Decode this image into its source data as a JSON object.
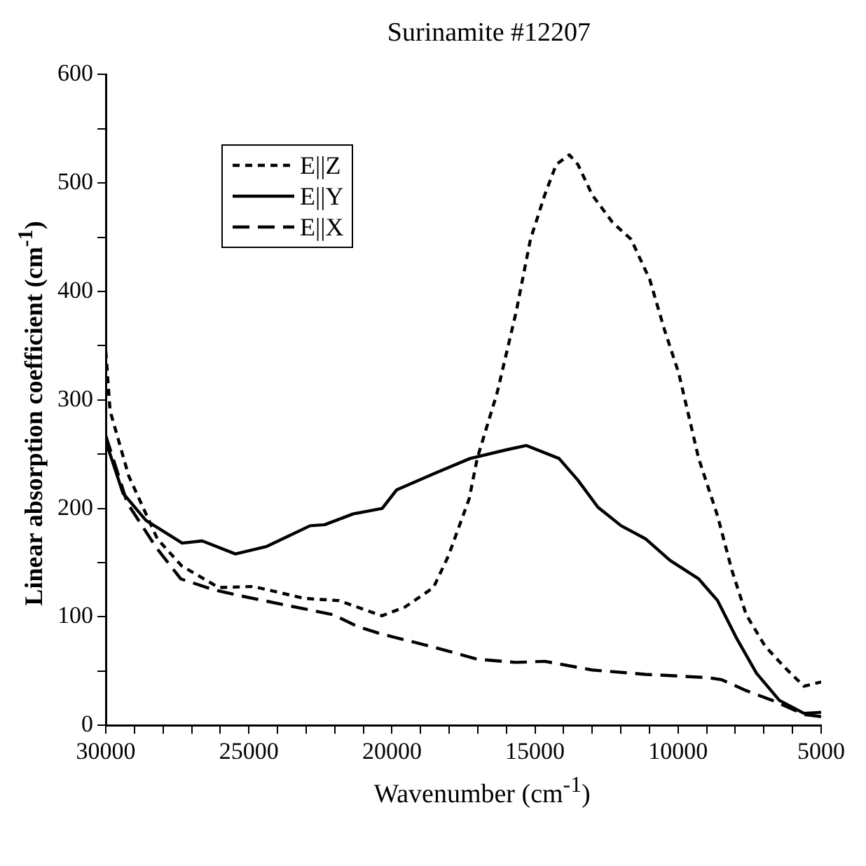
{
  "chart_data": {
    "type": "line",
    "title": "Surinamite #12207",
    "xlabel": "Wavenumber (cm$^{-1}$)",
    "ylabel": "Linear absorption coefficient (cm$^{-1}$)",
    "xlim": [
      30000,
      5000
    ],
    "ylim": [
      0,
      600
    ],
    "xticks": [
      30000,
      {
        "value": 29000,
        "label": null
      },
      {
        "value": 28000,
        "label": null
      },
      {
        "value": 27000,
        "label": null
      },
      {
        "value": 26000,
        "label": null
      },
      25000,
      {
        "value": 24000,
        "label": null
      },
      {
        "value": 23000,
        "label": null
      },
      {
        "value": 22000,
        "label": null
      },
      {
        "value": 21000,
        "label": null
      },
      20000,
      {
        "value": 19000,
        "label": null
      },
      {
        "value": 18000,
        "label": null
      },
      {
        "value": 17000,
        "label": null
      },
      {
        "value": 16000,
        "label": null
      },
      15000,
      {
        "value": 14000,
        "label": null
      },
      {
        "value": 13000,
        "label": null
      },
      {
        "value": 12000,
        "label": null
      },
      {
        "value": 11000,
        "label": null
      },
      10000,
      {
        "value": 9000,
        "label": null
      },
      {
        "value": 8000,
        "label": null
      },
      {
        "value": 7000,
        "label": null
      },
      {
        "value": 6000,
        "label": null
      },
      5000
    ],
    "yticks": [
      0,
      {
        "value": 50,
        "label": null
      },
      100,
      {
        "value": 150,
        "label": null
      },
      200,
      {
        "value": 250,
        "label": null
      },
      300,
      {
        "value": 350,
        "label": null
      },
      400,
      {
        "value": 450,
        "label": null
      },
      500,
      {
        "value": 550,
        "label": null
      },
      600
    ],
    "grid": false,
    "legend": "top left",
    "marker": "none",
    "series": [
      {
        "name": "E||Z",
        "color": "#000000",
        "line_style": "dotted",
        "x": [
          30000,
          29850,
          29200,
          28200,
          27350,
          26050,
          24850,
          23050,
          21850,
          20350,
          19550,
          18550,
          18030,
          17300,
          17020,
          16320,
          15660,
          15160,
          14660,
          14260,
          13800,
          13500,
          13000,
          12300,
          11640,
          10990,
          10480,
          9980,
          9280,
          8620,
          8120,
          7620,
          6960,
          6260,
          5600,
          5000
        ],
        "values": [
          345,
          290,
          230,
          172,
          147,
          127,
          128,
          117,
          115,
          101,
          109,
          127,
          156,
          209,
          246,
          307,
          381,
          448,
          489,
          517,
          526,
          517,
          489,
          464,
          448,
          411,
          365,
          325,
          246,
          193,
          143,
          102,
          73,
          53,
          36,
          40
        ]
      },
      {
        "name": "E||Y",
        "color": "#000000",
        "line_style": "solid",
        "x": [
          30000,
          29400,
          28600,
          27330,
          26630,
          25470,
          24370,
          22860,
          22350,
          21350,
          20340,
          19840,
          18530,
          17270,
          16000,
          15310,
          14160,
          13500,
          12800,
          11990,
          11140,
          10280,
          9280,
          8620,
          7970,
          7260,
          6460,
          5600,
          5000
        ],
        "values": [
          262,
          214,
          189,
          168,
          170,
          158,
          165,
          184,
          185,
          195,
          200,
          217,
          232,
          246,
          254,
          258,
          246,
          226,
          201,
          184,
          172,
          152,
          135,
          115,
          81,
          48,
          23,
          11,
          12
        ]
      },
      {
        "name": "E||X",
        "color": "#000000",
        "line_style": "dashed",
        "x": [
          30000,
          29250,
          28240,
          27380,
          26230,
          25220,
          23560,
          22050,
          21200,
          20340,
          18530,
          17020,
          15660,
          14660,
          13000,
          11140,
          8970,
          8470,
          7620,
          6610,
          5600,
          5000
        ],
        "values": [
          267,
          205,
          164,
          135,
          125,
          119,
          110,
          102,
          91,
          84,
          72,
          61,
          58,
          59,
          51,
          47,
          44,
          42,
          32,
          22,
          10,
          8
        ]
      }
    ]
  }
}
